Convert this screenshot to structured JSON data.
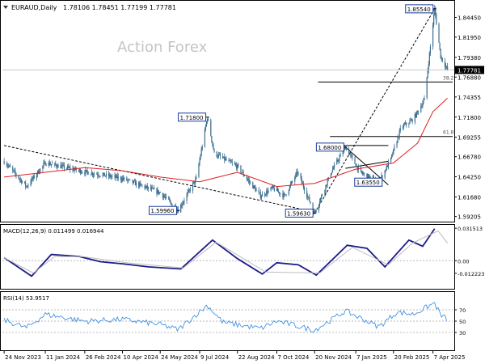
{
  "header": {
    "symbol": "EURAUD,Daily",
    "ohlc": "1.78106 1.78451 1.77199 1.77781"
  },
  "watermark": "Action Forex",
  "colors": {
    "candle": "#3d6f8f",
    "ma": "#e02020",
    "macd_line": "#1c1c8a",
    "macd_signal": "#bdbdbd",
    "rsi_line": "#2f86e0",
    "grid_dashed": "#b8b8b8",
    "label_box": "#1a3c9c"
  },
  "chart_data": [
    {
      "type": "candlestick",
      "panel": "price",
      "ylim": [
        1.5865,
        1.8645
      ],
      "y_ticks": [
        "1.84450",
        "1.81950",
        "1.79380",
        "1.76880",
        "1.74355",
        "1.71800",
        "1.69255",
        "1.66780",
        "1.64250",
        "1.61680",
        "1.59205"
      ],
      "current_price": "1.77781",
      "x_ticks": [
        "24 Nov 2023",
        "11 Jan 2024",
        "26 Feb 2024",
        "10 Apr 2024",
        "24 May 2024",
        "9 Jul 2024",
        "22 Aug 2024",
        "7 Oct 2024",
        "20 Nov 2024",
        "7 Jan 2025",
        "20 Feb 2025",
        "7 Apr 2025"
      ],
      "price_path": [
        {
          "date": "2023-11-24",
          "close": 1.662
        },
        {
          "date": "2023-12-20",
          "close": 1.63
        },
        {
          "date": "2024-01-11",
          "close": 1.66
        },
        {
          "date": "2024-02-20",
          "close": 1.65
        },
        {
          "date": "2024-04-10",
          "close": 1.64
        },
        {
          "date": "2024-05-24",
          "close": 1.622
        },
        {
          "date": "2024-06-14",
          "close": 1.6
        },
        {
          "date": "2024-07-05",
          "close": 1.64
        },
        {
          "date": "2024-07-18",
          "close": 1.718
        },
        {
          "date": "2024-07-26",
          "close": 1.672
        },
        {
          "date": "2024-08-22",
          "close": 1.655
        },
        {
          "date": "2024-09-18",
          "close": 1.618
        },
        {
          "date": "2024-10-02",
          "close": 1.628
        },
        {
          "date": "2024-10-16",
          "close": 1.618
        },
        {
          "date": "2024-10-31",
          "close": 1.648
        },
        {
          "date": "2024-11-20",
          "close": 1.5963
        },
        {
          "date": "2024-12-10",
          "close": 1.65
        },
        {
          "date": "2024-12-26",
          "close": 1.68
        },
        {
          "date": "2025-01-12",
          "close": 1.648
        },
        {
          "date": "2025-02-03",
          "close": 1.6355
        },
        {
          "date": "2025-02-17",
          "close": 1.665
        },
        {
          "date": "2025-03-01",
          "close": 1.705
        },
        {
          "date": "2025-03-15",
          "close": 1.715
        },
        {
          "date": "2025-03-28",
          "close": 1.74
        },
        {
          "date": "2025-04-09",
          "close": 1.8554
        },
        {
          "date": "2025-04-16",
          "close": 1.795
        },
        {
          "date": "2025-04-24",
          "close": 1.7778
        }
      ],
      "moving_average_path": [
        {
          "date": "2023-11-24",
          "close": 1.642
        },
        {
          "date": "2024-01-11",
          "close": 1.648
        },
        {
          "date": "2024-02-26",
          "close": 1.654
        },
        {
          "date": "2024-04-10",
          "close": 1.65
        },
        {
          "date": "2024-05-24",
          "close": 1.642
        },
        {
          "date": "2024-07-09",
          "close": 1.636
        },
        {
          "date": "2024-08-22",
          "close": 1.648
        },
        {
          "date": "2024-10-07",
          "close": 1.63
        },
        {
          "date": "2024-11-20",
          "close": 1.634
        },
        {
          "date": "2025-01-07",
          "close": 1.652
        },
        {
          "date": "2025-02-20",
          "close": 1.66
        },
        {
          "date": "2025-03-20",
          "close": 1.685
        },
        {
          "date": "2025-04-07",
          "close": 1.725
        },
        {
          "date": "2025-04-24",
          "close": 1.742
        }
      ],
      "annotations": [
        {
          "text": "1.85540",
          "date": "2025-04-09",
          "price": 1.8554,
          "side": "left"
        },
        {
          "text": "1.71800",
          "date": "2024-07-18",
          "price": 1.718,
          "side": "left"
        },
        {
          "text": "1.68000",
          "date": "2024-12-26",
          "price": 1.68,
          "side": "left"
        },
        {
          "text": "1.63550",
          "date": "2025-02-03",
          "price": 1.6355,
          "side": "right"
        },
        {
          "text": "1.59960",
          "date": "2024-06-14",
          "price": 1.5996,
          "side": "left"
        },
        {
          "text": "1.59630",
          "date": "2024-11-20",
          "price": 1.5963,
          "side": "left"
        }
      ],
      "fib_levels": [
        {
          "label": "38.2",
          "price": 1.7625
        },
        {
          "label": "61.8",
          "price": 1.6935
        }
      ],
      "trendlines": [
        {
          "from": {
            "date": "2023-11-24",
            "price": 1.682
          },
          "to": {
            "date": "2024-11-10",
            "price": 1.6
          }
        },
        {
          "from": {
            "date": "2024-11-20",
            "price": 1.5963
          },
          "to": {
            "date": "2025-04-09",
            "price": 1.8554
          }
        },
        {
          "from": {
            "date": "2024-12-10",
            "price": 1.682
          },
          "to": {
            "date": "2025-02-14",
            "price": 1.682
          }
        },
        {
          "from": {
            "date": "2024-12-26",
            "price": 1.68
          },
          "to": {
            "date": "2025-02-14",
            "price": 1.632
          }
        },
        {
          "from": {
            "date": "2024-12-26",
            "price": 1.653
          },
          "to": {
            "date": "2025-02-14",
            "price": 1.662
          }
        }
      ]
    },
    {
      "type": "line",
      "panel": "macd",
      "title": "MACD(12,26,9) 0.011499 0.016944",
      "ylim": [
        -0.0265,
        0.034
      ],
      "y_ticks": [
        "0.031513",
        "0.00",
        "-0.012223"
      ],
      "series": [
        {
          "values": [
            {
              "date": "2023-11-24",
              "v": 0.003
            },
            {
              "date": "2023-12-26",
              "v": -0.015
            },
            {
              "date": "2024-01-18",
              "v": 0.006
            },
            {
              "date": "2024-02-20",
              "v": 0.004
            },
            {
              "date": "2024-03-15",
              "v": -0.001
            },
            {
              "date": "2024-04-10",
              "v": -0.003
            },
            {
              "date": "2024-05-10",
              "v": -0.006
            },
            {
              "date": "2024-06-17",
              "v": -0.008
            },
            {
              "date": "2024-07-24",
              "v": 0.02
            },
            {
              "date": "2024-08-22",
              "v": 0.002
            },
            {
              "date": "2024-09-20",
              "v": -0.013
            },
            {
              "date": "2024-10-07",
              "v": -0.002
            },
            {
              "date": "2024-11-01",
              "v": -0.004
            },
            {
              "date": "2024-11-22",
              "v": -0.014
            },
            {
              "date": "2024-12-28",
              "v": 0.015
            },
            {
              "date": "2025-01-20",
              "v": 0.012
            },
            {
              "date": "2025-02-10",
              "v": -0.006
            },
            {
              "date": "2025-03-10",
              "v": 0.02
            },
            {
              "date": "2025-03-26",
              "v": 0.014
            },
            {
              "date": "2025-04-09",
              "v": 0.031
            }
          ]
        },
        {
          "values": [
            {
              "date": "2023-11-24",
              "v": 0.003
            },
            {
              "date": "2023-12-28",
              "v": -0.012
            },
            {
              "date": "2024-01-22",
              "v": 0.004
            },
            {
              "date": "2024-02-24",
              "v": 0.004
            },
            {
              "date": "2024-04-14",
              "v": -0.002
            },
            {
              "date": "2024-06-20",
              "v": -0.007
            },
            {
              "date": "2024-07-28",
              "v": 0.018
            },
            {
              "date": "2024-09-24",
              "v": -0.011
            },
            {
              "date": "2024-11-26",
              "v": -0.012
            },
            {
              "date": "2025-01-03",
              "v": 0.013
            },
            {
              "date": "2025-02-14",
              "v": -0.004
            },
            {
              "date": "2025-03-14",
              "v": 0.017
            },
            {
              "date": "2025-04-13",
              "v": 0.029
            },
            {
              "date": "2025-04-24",
              "v": 0.016944
            }
          ]
        }
      ]
    },
    {
      "type": "line",
      "panel": "rsi",
      "title": "RSI(14) 53.9517",
      "ylim": [
        0,
        100
      ],
      "y_ticks": [
        "70",
        "50",
        "30"
      ],
      "series": [
        {
          "values": [
            {
              "date": "2023-11-24",
              "v": 52
            },
            {
              "date": "2023-12-20",
              "v": 38
            },
            {
              "date": "2024-01-11",
              "v": 62
            },
            {
              "date": "2024-02-26",
              "v": 50
            },
            {
              "date": "2024-04-10",
              "v": 53
            },
            {
              "date": "2024-05-24",
              "v": 44
            },
            {
              "date": "2024-06-14",
              "v": 35
            },
            {
              "date": "2024-07-18",
              "v": 78
            },
            {
              "date": "2024-08-05",
              "v": 48
            },
            {
              "date": "2024-09-18",
              "v": 37
            },
            {
              "date": "2024-10-07",
              "v": 50
            },
            {
              "date": "2024-11-20",
              "v": 34
            },
            {
              "date": "2024-12-26",
              "v": 68
            },
            {
              "date": "2025-01-20",
              "v": 50
            },
            {
              "date": "2025-02-03",
              "v": 40
            },
            {
              "date": "2025-02-24",
              "v": 66
            },
            {
              "date": "2025-03-15",
              "v": 62
            },
            {
              "date": "2025-04-09",
              "v": 82
            },
            {
              "date": "2025-04-16",
              "v": 60
            },
            {
              "date": "2025-04-24",
              "v": 53.9517
            }
          ]
        }
      ]
    }
  ]
}
